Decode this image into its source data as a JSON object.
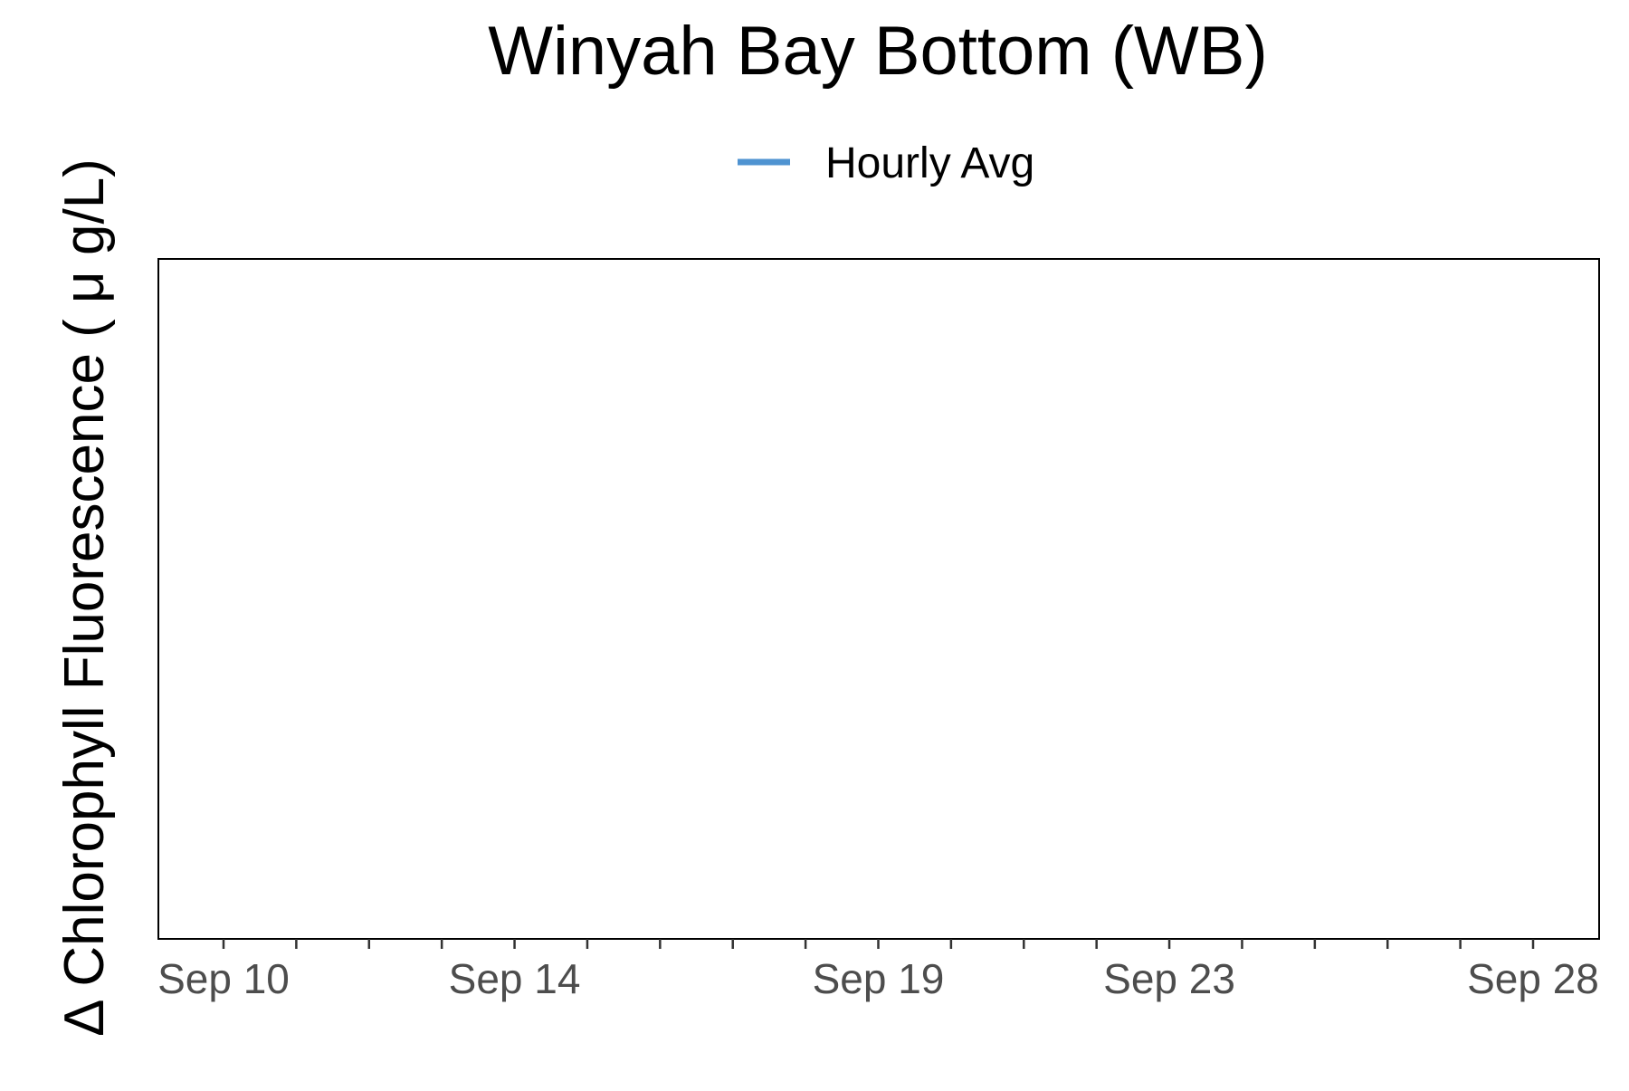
{
  "chart_data": {
    "type": "line",
    "title": "Winyah Bay Bottom (WB)",
    "ylabel": "Δ Chlorophyll Fluorescence ( μ g/L)",
    "xlabel": "",
    "x_axis_type": "date",
    "xlim": [
      "2024-09-09",
      "2024-09-28"
    ],
    "x_ticks": [
      {
        "date": "2024-09-10",
        "label": "Sep 10"
      },
      {
        "date": "2024-09-11",
        "label": ""
      },
      {
        "date": "2024-09-12",
        "label": ""
      },
      {
        "date": "2024-09-13",
        "label": ""
      },
      {
        "date": "2024-09-14",
        "label": "Sep 14"
      },
      {
        "date": "2024-09-15",
        "label": ""
      },
      {
        "date": "2024-09-16",
        "label": ""
      },
      {
        "date": "2024-09-17",
        "label": ""
      },
      {
        "date": "2024-09-18",
        "label": ""
      },
      {
        "date": "2024-09-19",
        "label": "Sep 19"
      },
      {
        "date": "2024-09-20",
        "label": ""
      },
      {
        "date": "2024-09-21",
        "label": ""
      },
      {
        "date": "2024-09-22",
        "label": ""
      },
      {
        "date": "2024-09-23",
        "label": "Sep 23"
      },
      {
        "date": "2024-09-24",
        "label": ""
      },
      {
        "date": "2024-09-25",
        "label": ""
      },
      {
        "date": "2024-09-26",
        "label": ""
      },
      {
        "date": "2024-09-27",
        "label": ""
      },
      {
        "date": "2024-09-28",
        "label": "Sep 28"
      }
    ],
    "grid": false,
    "legend_position": "top-center",
    "series": [
      {
        "name": "Hourly Avg",
        "color": "#4f93d1",
        "values": []
      }
    ]
  }
}
